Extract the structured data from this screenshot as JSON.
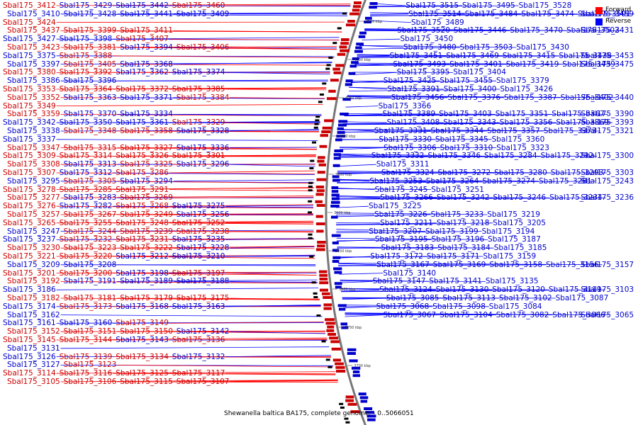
{
  "legend": {
    "forward": {
      "label": "Forward",
      "color": "#ff0000"
    },
    "reverse": {
      "label": "Reverse",
      "color": "#0000ff"
    }
  },
  "caption": "Shewanella baltica BA175, complete genome. - 0..5066051",
  "colors": {
    "forward": "#cc0000",
    "reverse": "#0000cc",
    "line_forward": "#ff0000",
    "line_reverse": "#0000ff",
    "backbone": "#777777"
  },
  "scale_labels": [
    "4150 kbp",
    "4100 kbp",
    "4050 kbp",
    "4000 kbp",
    "3950 kbp",
    "3900 kbp",
    "3850 kbp",
    "3800 kbp",
    "3750 kbp",
    "3700 kbp"
  ],
  "left_labels": [
    [
      "Sbal175_3412",
      "f"
    ],
    [
      "Sbal175_3429",
      "r"
    ],
    [
      "Sbal175_3442",
      "r"
    ],
    [
      "Sbal175_3460",
      "f"
    ],
    [
      "Sbal175_3410",
      "r"
    ],
    [
      "Sbal175_3428",
      "r"
    ],
    [
      "Sbal175_3441",
      "r"
    ],
    [
      "Sbal175_3409",
      "r"
    ],
    [
      "Sbal175_3424",
      "f"
    ],
    [
      "Sbal175_3437",
      "f"
    ],
    [
      "Sbal175_3399",
      "f"
    ],
    [
      "Sbal175_3411",
      "f"
    ],
    [
      "Sbal175_3427",
      "r"
    ],
    [
      "Sbal175_3398",
      "r"
    ],
    [
      "Sbal175_3407",
      "f"
    ],
    [
      "Sbal175_3423",
      "f"
    ],
    [
      "Sbal175_3381",
      "f"
    ],
    [
      "Sbal175_3394",
      "r"
    ],
    [
      "Sbal175_3406",
      "f"
    ],
    [
      "Sbal175_3375",
      "r"
    ],
    [
      "Sbal175_3388",
      "f"
    ],
    [
      "Sbal175_3397",
      "r"
    ],
    [
      "Sbal175_3405",
      "f"
    ],
    [
      "Sbal175_3368",
      "r"
    ],
    [
      "Sbal175_3380",
      "f"
    ],
    [
      "Sbal175_3392",
      "f"
    ],
    [
      "Sbal175_3362",
      "r"
    ],
    [
      "Sbal175_3374",
      "r"
    ],
    [
      "Sbal175_3386",
      "r"
    ],
    [
      "Sbal175_3396",
      "r"
    ],
    [
      "Sbal175_3353",
      "f"
    ],
    [
      "Sbal175_3364",
      "f"
    ],
    [
      "Sbal175_3372",
      "f"
    ],
    [
      "Sbal175_3385",
      "f"
    ],
    [
      "Sbal175_3352",
      "f"
    ],
    [
      "Sbal175_3363",
      "r"
    ],
    [
      "Sbal175_3371",
      "r"
    ],
    [
      "Sbal175_3384",
      "f"
    ],
    [
      "Sbal175_3349",
      "f"
    ],
    [
      "Sbal175_3359",
      "f"
    ],
    [
      "Sbal175_3370",
      "r"
    ],
    [
      "Sbal175_3334",
      "r"
    ],
    [
      "Sbal175_3342",
      "r"
    ],
    [
      "Sbal175_3350",
      "r"
    ],
    [
      "Sbal175_3361",
      "r"
    ],
    [
      "Sbal175_3329",
      "f"
    ],
    [
      "Sbal175_3338",
      "r"
    ],
    [
      "Sbal175_3348",
      "f"
    ],
    [
      "Sbal175_3358",
      "f"
    ],
    [
      "Sbal175_3328",
      "r"
    ],
    [
      "Sbal175_3337",
      "r"
    ],
    [
      "Sbal175_3347",
      "f"
    ],
    [
      "Sbal175_3315",
      "f"
    ],
    [
      "Sbal175_3327",
      "f"
    ],
    [
      "Sbal175_3336",
      "r"
    ],
    [
      "Sbal175_3309",
      "f"
    ],
    [
      "Sbal175_3314",
      "f"
    ],
    [
      "Sbal175_3326",
      "f"
    ],
    [
      "Sbal175_3301",
      "f"
    ],
    [
      "Sbal175_3308",
      "f"
    ],
    [
      "Sbal175_3313",
      "r"
    ],
    [
      "Sbal175_3325",
      "f"
    ],
    [
      "Sbal175_3296",
      "r"
    ],
    [
      "Sbal175_3307",
      "f"
    ],
    [
      "Sbal175_3312",
      "r"
    ],
    [
      "Sbal175_3286",
      "f"
    ],
    [
      "Sbal175_3295",
      "r"
    ],
    [
      "Sbal175_3305",
      "f"
    ],
    [
      "Sbal175_3294",
      "r"
    ],
    [
      "Sbal175_3278",
      "f"
    ],
    [
      "Sbal175_3285",
      "f"
    ],
    [
      "Sbal175_3291",
      "f"
    ],
    [
      "Sbal175_3277",
      "f"
    ],
    [
      "Sbal175_3283",
      "r"
    ],
    [
      "Sbal175_3269",
      "f"
    ],
    [
      "Sbal175_3276",
      "f"
    ],
    [
      "Sbal175_3282",
      "r"
    ],
    [
      "Sbal175_3268",
      "f"
    ],
    [
      "Sbal175_3275",
      "r"
    ],
    [
      "Sbal175_3257",
      "f"
    ],
    [
      "Sbal175_3267",
      "f"
    ],
    [
      "Sbal175_3249",
      "f"
    ],
    [
      "Sbal175_3256",
      "r"
    ],
    [
      "Sbal175_3265",
      "f"
    ],
    [
      "Sbal175_3255",
      "f"
    ],
    [
      "Sbal175_3248",
      "f"
    ],
    [
      "Sbal175_3252",
      "f"
    ],
    [
      "Sbal175_3247",
      "r"
    ],
    [
      "Sbal175_3244",
      "f"
    ],
    [
      "Sbal175_3239",
      "f"
    ],
    [
      "Sbal175_3238",
      "f"
    ],
    [
      "Sbal175_3237",
      "r"
    ],
    [
      "Sbal175_3232",
      "f"
    ],
    [
      "Sbal175_3231",
      "f"
    ],
    [
      "Sbal175_3235",
      "r"
    ],
    [
      "Sbal175_3230",
      "f"
    ],
    [
      "Sbal175_3223",
      "f"
    ],
    [
      "Sbal175_3222",
      "f"
    ],
    [
      "Sbal175_3228",
      "r"
    ],
    [
      "Sbal175_3221",
      "f"
    ],
    [
      "Sbal175_3220",
      "f"
    ],
    [
      "Sbal175_3212",
      "r"
    ],
    [
      "Sbal175_3210",
      "r"
    ],
    [
      "Sbal175_3209",
      "r"
    ],
    [
      "Sbal175_3208",
      "r"
    ],
    [
      "Sbal175_3201",
      "f"
    ],
    [
      "Sbal175_3200",
      "f"
    ],
    [
      "Sbal175_3198",
      "r"
    ],
    [
      "Sbal175_3197",
      "f"
    ],
    [
      "Sbal175_3192",
      "f"
    ],
    [
      "Sbal175_3191",
      "r"
    ],
    [
      "Sbal175_3189",
      "r"
    ],
    [
      "Sbal175_3188",
      "r"
    ],
    [
      "Sbal175_3186",
      "r"
    ],
    [
      "Sbal175_3182",
      "f"
    ],
    [
      "Sbal175_3181",
      "f"
    ],
    [
      "Sbal175_3179",
      "f"
    ],
    [
      "Sbal175_3175",
      "f"
    ],
    [
      "Sbal175_3174",
      "r"
    ],
    [
      "Sbal175_3173",
      "f"
    ],
    [
      "Sbal175_3168",
      "r"
    ],
    [
      "Sbal175_3163",
      "r"
    ],
    [
      "Sbal175_3162",
      "r"
    ],
    [
      "Sbal175_3161",
      "r"
    ],
    [
      "Sbal175_3160",
      "r"
    ],
    [
      "Sbal175_3149",
      "f"
    ],
    [
      "Sbal175_3152",
      "f"
    ],
    [
      "Sbal175_3151",
      "f"
    ],
    [
      "Sbal175_3150",
      "f"
    ],
    [
      "Sbal175_3142",
      "r"
    ],
    [
      "Sbal175_3145",
      "f"
    ],
    [
      "Sbal175_3144",
      "f"
    ],
    [
      "Sbal175_3143",
      "r"
    ],
    [
      "Sbal175_3136",
      "f"
    ],
    [
      "Sbal175_3131",
      "r"
    ],
    [
      "Sbal175_3126",
      "r"
    ],
    [
      "Sbal175_3139",
      "f"
    ],
    [
      "Sbal175_3134",
      "f"
    ],
    [
      "Sbal175_3132",
      "r"
    ],
    [
      "Sbal175_3127",
      "r"
    ],
    [
      "Sbal175_3123",
      "f"
    ],
    [
      "Sbal175_3114",
      "f"
    ],
    [
      "Sbal175_3116",
      "f"
    ],
    [
      "Sbal175_3125",
      "f"
    ],
    [
      "Sbal175_3117",
      "f"
    ],
    [
      "Sbal175_3105",
      "f"
    ],
    [
      "Sbal175_3106",
      "f"
    ],
    [
      "Sbal175_3115",
      "f"
    ],
    [
      "Sbal175_3107",
      "f"
    ]
  ],
  "right_labels": [
    [
      "Sbal175_3515",
      "r"
    ],
    [
      "Sbal175_3495",
      "r"
    ],
    [
      "Sbal175_3528",
      "r"
    ],
    [
      "Sbal175_3514",
      "r"
    ],
    [
      "Sbal175_3484",
      "r"
    ],
    [
      "Sbal175_3474",
      "r"
    ],
    [
      "Sbal175_3501",
      "r"
    ],
    [
      "Sbal175_3459",
      "r"
    ],
    [
      "Sbal175_3489",
      "r"
    ],
    [
      "Sbal175_3520",
      "r"
    ],
    [
      "Sbal175_3446",
      "r"
    ],
    [
      "Sbal175_3470",
      "r"
    ],
    [
      "Sbal175_3502",
      "r"
    ],
    [
      "Sbal175_3431",
      "r"
    ],
    [
      "Sbal175_3450",
      "r"
    ],
    [
      "Sbal175_3480",
      "r"
    ],
    [
      "Sbal175_3503",
      "r"
    ],
    [
      "Sbal175_3430",
      "r"
    ],
    [
      "Sbal175_3451",
      "r"
    ],
    [
      "Sbal175_3469",
      "r"
    ],
    [
      "Sbal175_3415",
      "r"
    ],
    [
      "Sbal175_3438",
      "r"
    ],
    [
      "Sbal175_3453",
      "r"
    ],
    [
      "Sbal175_3493",
      "r"
    ],
    [
      "Sbal175_3401",
      "r"
    ],
    [
      "Sbal175_3419",
      "r"
    ],
    [
      "Sbal175_3439",
      "r"
    ],
    [
      "Sbal175_3475",
      "r"
    ],
    [
      "Sbal175_3395",
      "r"
    ],
    [
      "Sbal175_3404",
      "r"
    ],
    [
      "Sbal175_3425",
      "r"
    ],
    [
      "Sbal175_3455",
      "r"
    ],
    [
      "Sbal175_3379",
      "r"
    ],
    [
      "Sbal175_3391",
      "r"
    ],
    [
      "Sbal175_3400",
      "r"
    ],
    [
      "Sbal175_3426",
      "r"
    ],
    [
      "Sbal175_3456",
      "r"
    ],
    [
      "Sbal175_3376",
      "r"
    ],
    [
      "Sbal175_3387",
      "r"
    ],
    [
      "Sbal175_3402",
      "r"
    ],
    [
      "Sbal175_3440",
      "r"
    ],
    [
      "Sbal175_3366",
      "r"
    ],
    [
      "Sbal175_3389",
      "r"
    ],
    [
      "Sbal175_3403",
      "r"
    ],
    [
      "Sbal175_3351",
      "r"
    ],
    [
      "Sbal175_3367",
      "r"
    ],
    [
      "Sbal175_3390",
      "r"
    ],
    [
      "Sbal175_3408",
      "r"
    ],
    [
      "Sbal175_3343",
      "r"
    ],
    [
      "Sbal175_3356",
      "r"
    ],
    [
      "Sbal175_3369",
      "r"
    ],
    [
      "Sbal175_3393",
      "r"
    ],
    [
      "Sbal175_3331",
      "r"
    ],
    [
      "Sbal175_3344",
      "r"
    ],
    [
      "Sbal175_3357",
      "r"
    ],
    [
      "Sbal175_3373",
      "r"
    ],
    [
      "Sbal175_3321",
      "r"
    ],
    [
      "Sbal175_3330",
      "r"
    ],
    [
      "Sbal175_3345",
      "r"
    ],
    [
      "Sbal175_3360",
      "r"
    ],
    [
      "Sbal175_3306",
      "r"
    ],
    [
      "Sbal175_3310",
      "r"
    ],
    [
      "Sbal175_3323",
      "r"
    ],
    [
      "Sbal175_3332",
      "r"
    ],
    [
      "Sbal175_3346",
      "r"
    ],
    [
      "Sbal175_3284",
      "r"
    ],
    [
      "Sbal175_3292",
      "r"
    ],
    [
      "Sbal175_3300",
      "r"
    ],
    [
      "Sbal175_3311",
      "r"
    ],
    [
      "Sbal175_3324",
      "r"
    ],
    [
      "Sbal175_3272",
      "r"
    ],
    [
      "Sbal175_3280",
      "r"
    ],
    [
      "Sbal175_3293",
      "r"
    ],
    [
      "Sbal175_3303",
      "r"
    ],
    [
      "Sbal175_3253",
      "r"
    ],
    [
      "Sbal175_3264",
      "r"
    ],
    [
      "Sbal175_3274",
      "r"
    ],
    [
      "Sbal175_3281",
      "r"
    ],
    [
      "Sbal175_3243",
      "r"
    ],
    [
      "Sbal175_3245",
      "r"
    ],
    [
      "Sbal175_3251",
      "r"
    ],
    [
      "Sbal175_3266",
      "r"
    ],
    [
      "Sbal175_3242",
      "r"
    ],
    [
      "Sbal175_3246",
      "r"
    ],
    [
      "Sbal175_3234",
      "r"
    ],
    [
      "Sbal175_3236",
      "r"
    ],
    [
      "Sbal175_3225",
      "r"
    ],
    [
      "Sbal175_3226",
      "r"
    ],
    [
      "Sbal175_3233",
      "r"
    ],
    [
      "Sbal175_3219",
      "r"
    ],
    [
      "Sbal175_3211",
      "r"
    ],
    [
      "Sbal175_3218",
      "r"
    ],
    [
      "Sbal175_3205",
      "r"
    ],
    [
      "Sbal175_3207",
      "r"
    ],
    [
      "Sbal175_3199",
      "r"
    ],
    [
      "Sbal175_3194",
      "r"
    ],
    [
      "Sbal175_3195",
      "r"
    ],
    [
      "Sbal175_3196",
      "r"
    ],
    [
      "Sbal175_3187",
      "r"
    ],
    [
      "Sbal175_3183",
      "r"
    ],
    [
      "Sbal175_3184",
      "r"
    ],
    [
      "Sbal175_3185",
      "r"
    ],
    [
      "Sbal175_3172",
      "r"
    ],
    [
      "Sbal175_3171",
      "r"
    ],
    [
      "Sbal175_3159",
      "r"
    ],
    [
      "Sbal175_3167",
      "r"
    ],
    [
      "Sbal175_3169",
      "r"
    ],
    [
      "Sbal175_3158",
      "r"
    ],
    [
      "Sbal175_3156",
      "r"
    ],
    [
      "Sbal175_3157",
      "r"
    ],
    [
      "Sbal175_3140",
      "r"
    ],
    [
      "Sbal175_3147",
      "r"
    ],
    [
      "Sbal175_3141",
      "r"
    ],
    [
      "Sbal175_3135",
      "r"
    ],
    [
      "Sbal175_3124",
      "r"
    ],
    [
      "Sbal175_3130",
      "r"
    ],
    [
      "Sbal175_3120",
      "r"
    ],
    [
      "Sbal175_3119",
      "r"
    ],
    [
      "Sbal175_3103",
      "r"
    ],
    [
      "Sbal175_3085",
      "r"
    ],
    [
      "Sbal175_3113",
      "r"
    ],
    [
      "Sbal175_3102",
      "r"
    ],
    [
      "Sbal175_3087",
      "r"
    ],
    [
      "Sbal175_3068",
      "r"
    ],
    [
      "Sbal175_3098",
      "r"
    ],
    [
      "Sbal175_3084",
      "r"
    ],
    [
      "Sbal175_3067",
      "r"
    ],
    [
      "Sbal175_3104",
      "r"
    ],
    [
      "Sbal175_3082",
      "r"
    ],
    [
      "Sbal175_3066",
      "r"
    ],
    [
      "Sbal175_3065",
      "r"
    ]
  ]
}
